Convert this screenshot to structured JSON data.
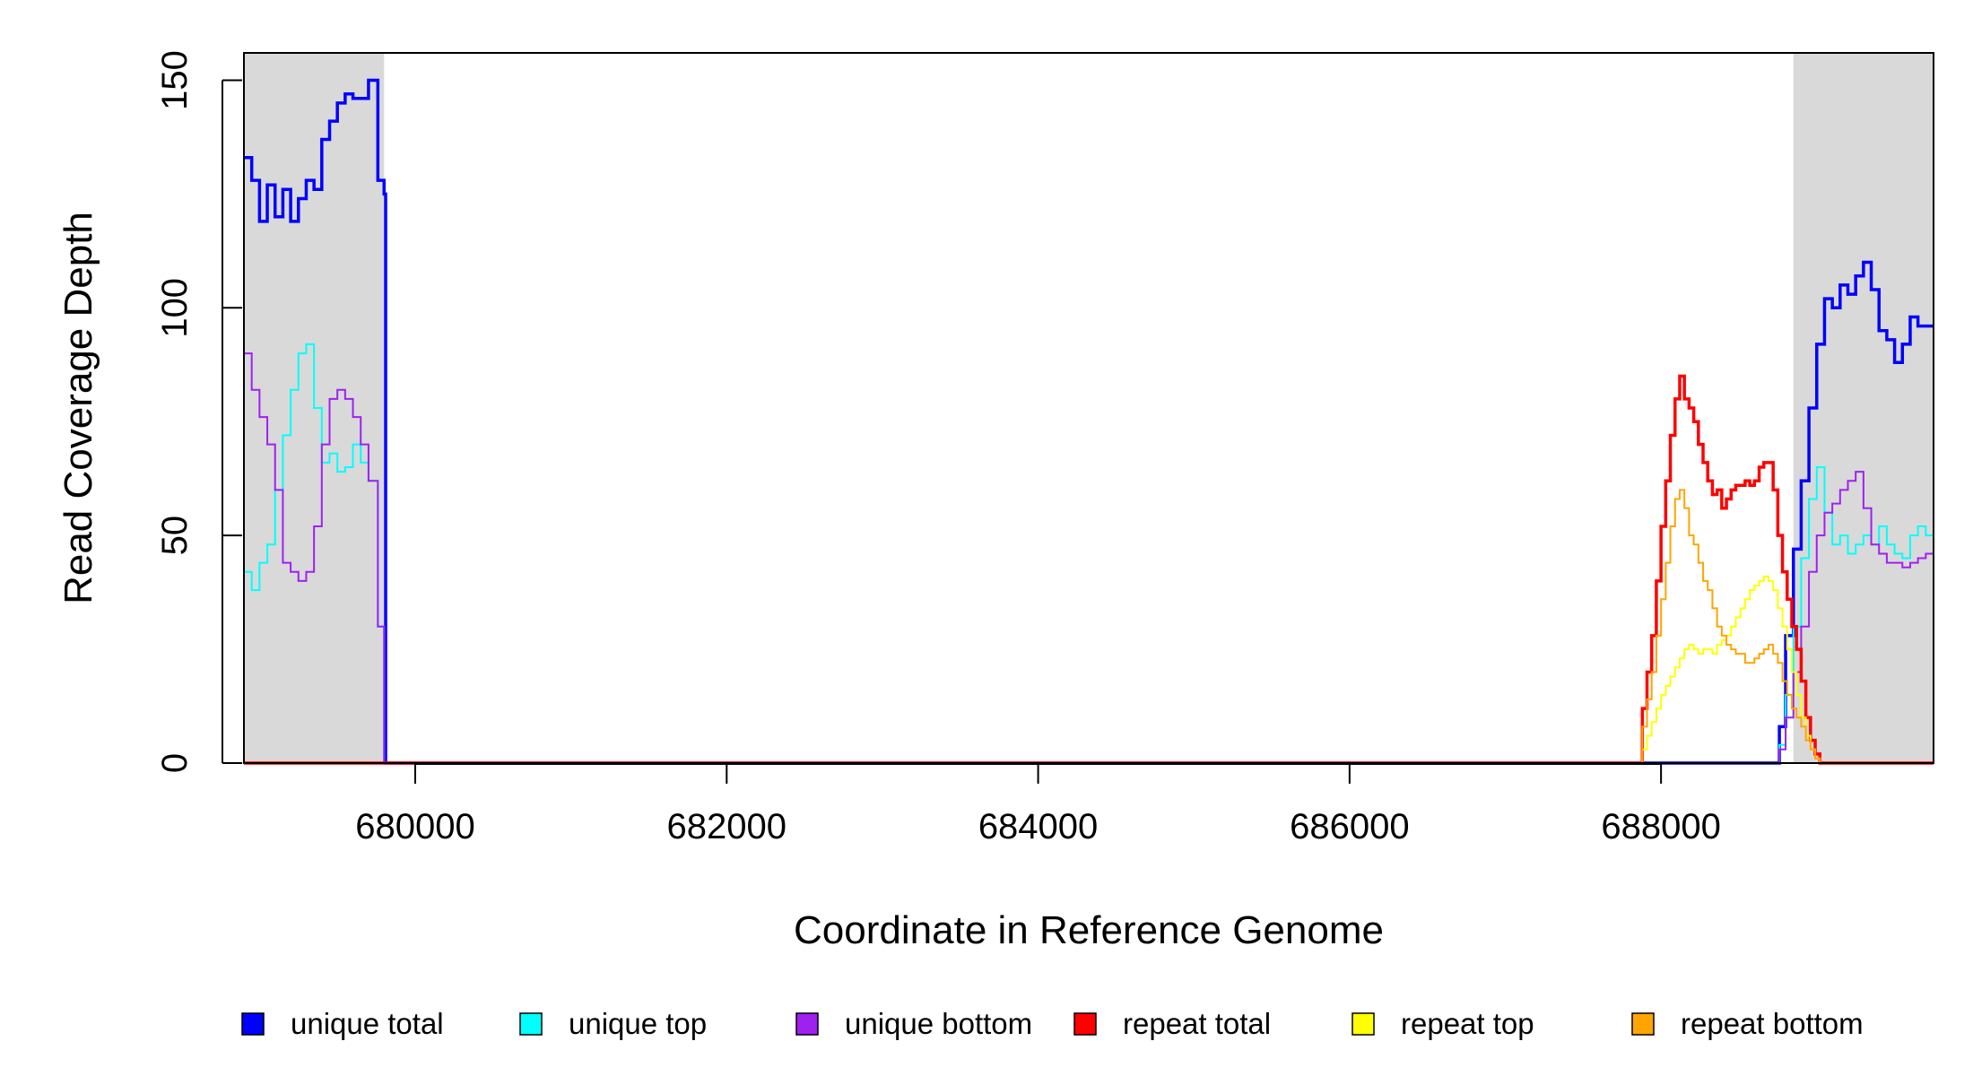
{
  "chart_data": {
    "type": "line",
    "xlabel": "Coordinate in Reference Genome",
    "ylabel": "Read Coverage Depth",
    "xlim": [
      678900,
      689750
    ],
    "ylim": [
      0,
      156
    ],
    "x_ticks": [
      680000,
      682000,
      684000,
      686000,
      688000
    ],
    "x_tick_labels": [
      "680000",
      "682000",
      "684000",
      "686000",
      "688000"
    ],
    "y_ticks": [
      0,
      50,
      100,
      150
    ],
    "y_tick_labels": [
      "0",
      "50",
      "100",
      "150"
    ],
    "grid": false,
    "legend_position": "bottom",
    "shaded_regions": [
      [
        678900,
        679800
      ],
      [
        688850,
        689750
      ]
    ],
    "shade_color": "#d9d9d9",
    "series": [
      {
        "name": "unique total",
        "color": "#0000ff",
        "line": "step",
        "x": [
          678900,
          678950,
          679000,
          679050,
          679100,
          679150,
          679200,
          679250,
          679300,
          679350,
          679400,
          679450,
          679500,
          679550,
          679600,
          679650,
          679700,
          679760,
          679800,
          679810,
          687850,
          688700,
          688760,
          688800,
          688850,
          688900,
          688950,
          689000,
          689050,
          689100,
          689150,
          689200,
          689250,
          689300,
          689350,
          689400,
          689450,
          689500,
          689550,
          689600,
          689650,
          689700,
          689750
        ],
        "values": [
          133,
          128,
          119,
          127,
          120,
          126,
          119,
          124,
          128,
          126,
          137,
          141,
          145,
          147,
          146,
          146,
          150,
          128,
          125,
          0,
          0,
          0,
          8,
          28,
          47,
          62,
          78,
          92,
          102,
          100,
          105,
          103,
          107,
          110,
          104,
          95,
          93,
          88,
          92,
          98,
          96,
          96,
          96
        ]
      },
      {
        "name": "unique top",
        "color": "#00ffff",
        "line": "step",
        "x": [
          678900,
          678950,
          679000,
          679050,
          679100,
          679150,
          679200,
          679250,
          679300,
          679350,
          679400,
          679450,
          679500,
          679550,
          679600,
          679650,
          679700,
          679760,
          679800,
          679810,
          687850,
          688700,
          688760,
          688800,
          688850,
          688900,
          688950,
          689000,
          689050,
          689100,
          689150,
          689200,
          689250,
          689300,
          689350,
          689400,
          689450,
          689500,
          689550,
          689600,
          689650,
          689700,
          689750
        ],
        "values": [
          42,
          38,
          44,
          48,
          60,
          72,
          82,
          90,
          92,
          78,
          66,
          68,
          64,
          65,
          70,
          66,
          62,
          30,
          0,
          0,
          0,
          0,
          4,
          15,
          30,
          45,
          58,
          65,
          55,
          48,
          50,
          46,
          48,
          50,
          48,
          52,
          48,
          46,
          45,
          50,
          52,
          50,
          52
        ]
      },
      {
        "name": "unique bottom",
        "color": "#a020f0",
        "line": "step",
        "x": [
          678900,
          678950,
          679000,
          679050,
          679100,
          679150,
          679200,
          679250,
          679300,
          679350,
          679400,
          679450,
          679500,
          679550,
          679600,
          679650,
          679700,
          679760,
          679800,
          679810,
          687850,
          688700,
          688760,
          688800,
          688850,
          688900,
          688950,
          689000,
          689050,
          689100,
          689150,
          689200,
          689250,
          689300,
          689350,
          689400,
          689450,
          689500,
          689550,
          689600,
          689650,
          689700,
          689750
        ],
        "values": [
          90,
          82,
          76,
          70,
          60,
          44,
          42,
          40,
          42,
          52,
          70,
          80,
          82,
          80,
          76,
          70,
          62,
          30,
          0,
          0,
          0,
          0,
          3,
          10,
          20,
          30,
          42,
          50,
          55,
          57,
          60,
          62,
          64,
          56,
          48,
          46,
          44,
          44,
          43,
          44,
          45,
          46,
          45
        ]
      },
      {
        "name": "repeat total",
        "color": "#ff0000",
        "line": "step",
        "x": [
          678900,
          687850,
          687880,
          687910,
          687940,
          687970,
          688000,
          688030,
          688060,
          688090,
          688120,
          688150,
          688180,
          688210,
          688240,
          688270,
          688300,
          688330,
          688360,
          688390,
          688420,
          688450,
          688480,
          688510,
          688540,
          688570,
          688600,
          688630,
          688660,
          688690,
          688720,
          688750,
          688780,
          688810,
          688840,
          688870,
          688900,
          688930,
          688960,
          688990,
          689020,
          689050,
          689080,
          689750
        ],
        "values": [
          0,
          0,
          12,
          20,
          28,
          40,
          52,
          62,
          72,
          80,
          85,
          80,
          78,
          75,
          70,
          66,
          62,
          59,
          60,
          56,
          58,
          60,
          61,
          61,
          62,
          61,
          62,
          65,
          66,
          66,
          60,
          50,
          42,
          36,
          30,
          25,
          18,
          10,
          5,
          2,
          0,
          0,
          0,
          0
        ]
      },
      {
        "name": "repeat top",
        "color": "#ffff00",
        "line": "step",
        "x": [
          678900,
          687850,
          687880,
          687910,
          687940,
          687970,
          688000,
          688030,
          688060,
          688090,
          688120,
          688150,
          688180,
          688210,
          688240,
          688270,
          688300,
          688330,
          688360,
          688390,
          688420,
          688450,
          688480,
          688510,
          688540,
          688570,
          688600,
          688630,
          688660,
          688690,
          688720,
          688750,
          688780,
          688810,
          688840,
          688870,
          688900,
          688930,
          688960,
          688990,
          689020,
          689050,
          689080,
          689750
        ],
        "values": [
          0,
          0,
          3,
          6,
          9,
          12,
          15,
          17,
          19,
          21,
          23,
          25,
          26,
          25,
          24,
          25,
          25,
          24,
          26,
          27,
          28,
          30,
          32,
          34,
          36,
          38,
          39,
          40,
          41,
          40,
          38,
          34,
          30,
          25,
          20,
          15,
          10,
          6,
          3,
          1,
          0,
          0,
          0,
          0
        ]
      },
      {
        "name": "repeat bottom",
        "color": "#ffa500",
        "line": "step",
        "x": [
          678900,
          687850,
          687880,
          687910,
          687940,
          687970,
          688000,
          688030,
          688060,
          688090,
          688120,
          688150,
          688180,
          688210,
          688240,
          688270,
          688300,
          688330,
          688360,
          688390,
          688420,
          688450,
          688480,
          688510,
          688540,
          688570,
          688600,
          688630,
          688660,
          688690,
          688720,
          688750,
          688780,
          688810,
          688840,
          688870,
          688900,
          688930,
          688960,
          688990,
          689020,
          689050,
          689080,
          689750
        ],
        "values": [
          0,
          0,
          8,
          14,
          20,
          28,
          36,
          44,
          52,
          58,
          60,
          56,
          50,
          48,
          44,
          40,
          38,
          34,
          30,
          28,
          26,
          25,
          24,
          24,
          22,
          22,
          23,
          24,
          25,
          26,
          24,
          22,
          18,
          15,
          12,
          10,
          8,
          5,
          3,
          1,
          0,
          0,
          0,
          0
        ]
      }
    ]
  }
}
